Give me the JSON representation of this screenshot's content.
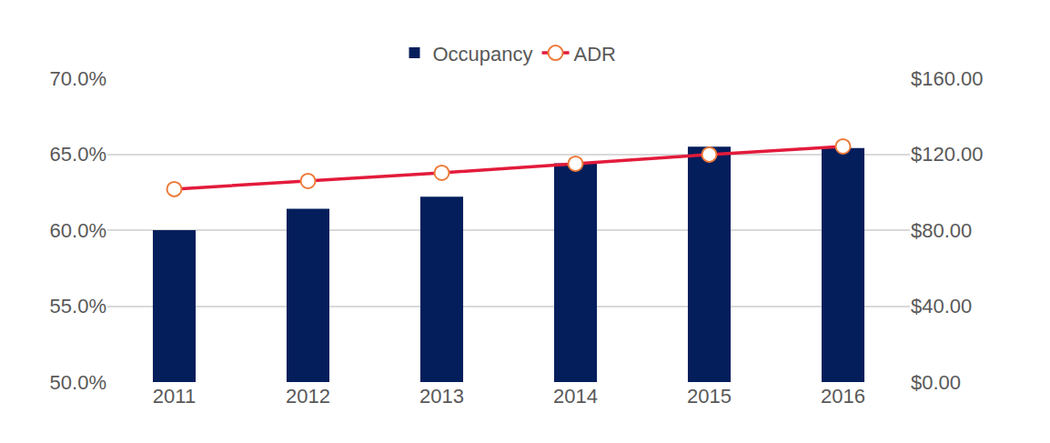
{
  "chart_data": {
    "type": "bar",
    "categories": [
      "2011",
      "2012",
      "2013",
      "2014",
      "2015",
      "2016"
    ],
    "series": [
      {
        "name": "Occupancy",
        "type": "bar",
        "color": "#041e5c",
        "axis": "y",
        "values": [
          60.0,
          61.4,
          62.2,
          64.4,
          65.5,
          65.4
        ]
      },
      {
        "name": "ADR",
        "type": "line",
        "color": "#e31b3b",
        "axis": "y2",
        "marker": "circle-open",
        "line_style": "solid",
        "values": [
          101.6,
          105.9,
          110.2,
          115.0,
          119.8,
          124.1
        ]
      }
    ],
    "ylim": [
      50,
      70
    ],
    "yticks": [
      {
        "value": 50,
        "label": "50.0%"
      },
      {
        "value": 55,
        "label": "55.0%"
      },
      {
        "value": 60,
        "label": "60.0%"
      },
      {
        "value": 65,
        "label": "65.0%"
      },
      {
        "value": 70,
        "label": "70.0%"
      }
    ],
    "y2lim": [
      0,
      160
    ],
    "y2ticks": [
      {
        "value": 0,
        "label": "$0.00"
      },
      {
        "value": 40,
        "label": "$40.00"
      },
      {
        "value": 80,
        "label": "$80.00"
      },
      {
        "value": 120,
        "label": "$120.00"
      },
      {
        "value": 160,
        "label": "$160.00"
      }
    ],
    "grid": true,
    "legend": "top"
  }
}
